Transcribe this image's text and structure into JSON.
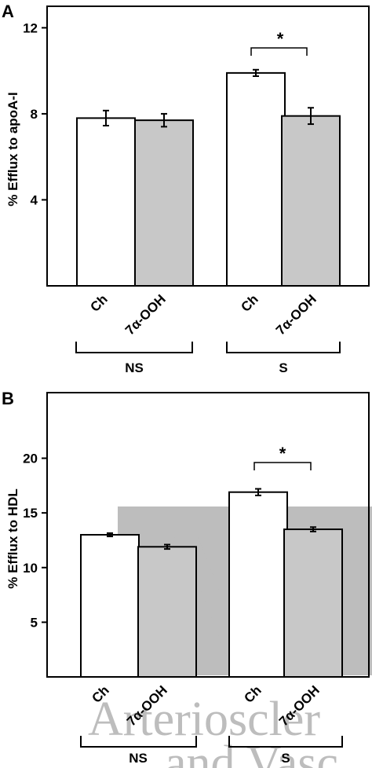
{
  "colors": {
    "control_fill": "#ffffff",
    "treated_fill": "#c8c8c8",
    "axis": "#000000",
    "watermark": "#bdbdbd"
  },
  "watermark": {
    "line1": "Arterioscler",
    "line2": "and Vasc",
    "emblem": "A"
  },
  "chart_data": [
    {
      "panel": "A",
      "type": "bar",
      "ylabel": "% Efflux to apoA-I",
      "ylim": [
        0,
        13
      ],
      "yticks": [
        4,
        8,
        12
      ],
      "groups": [
        "NS",
        "S"
      ],
      "categories": [
        "Ch",
        "7α-OOH",
        "Ch",
        "7α-OOH"
      ],
      "values": [
        7.8,
        7.7,
        9.9,
        7.9
      ],
      "errors": [
        0.35,
        0.3,
        0.15,
        0.38
      ],
      "significance": [
        {
          "between": [
            2,
            3
          ],
          "label": "*"
        }
      ]
    },
    {
      "panel": "B",
      "type": "bar",
      "ylabel": "% Efflux to HDL",
      "ylim": [
        0,
        26
      ],
      "yticks": [
        5,
        10,
        15,
        20
      ],
      "groups": [
        "NS",
        "S"
      ],
      "categories": [
        "Ch",
        "7α-OOH",
        "Ch",
        "7α-OOH"
      ],
      "values": [
        13.0,
        11.9,
        16.9,
        13.5
      ],
      "errors": [
        0.15,
        0.2,
        0.3,
        0.2
      ],
      "significance": [
        {
          "between": [
            2,
            3
          ],
          "label": "*"
        }
      ]
    }
  ]
}
